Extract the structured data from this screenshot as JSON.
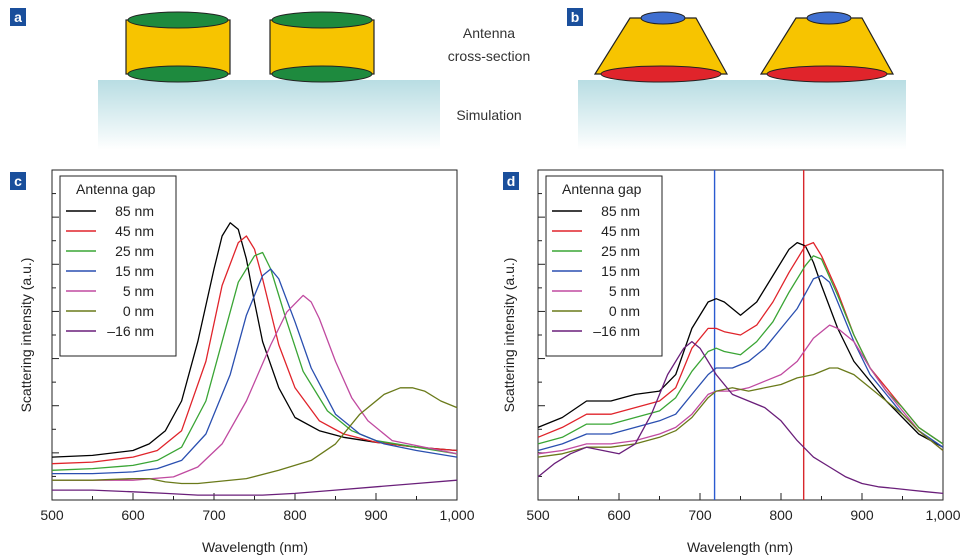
{
  "panels": {
    "a": "a",
    "b": "b",
    "c": "c",
    "d": "d"
  },
  "captions": {
    "antenna_line1": "Antenna",
    "antenna_line2": "cross-section",
    "simulation": "Simulation"
  },
  "colors": {
    "gold": "#f7c400",
    "green_ellipse": "#1e8a3e",
    "blue_ellipse": "#3f6fd0",
    "red_ellipse": "#e0242b",
    "substrate_top": "#b8dde3",
    "panel_label_bg": "#1a4f9c",
    "marker_blue": "#2a5ad0",
    "marker_red": "#d8272c"
  },
  "chart_data": [
    {
      "type": "line",
      "panel": "c",
      "xlabel": "Wavelength (nm)",
      "ylabel": "Scattering intensity (a.u.)",
      "xlim": [
        500,
        1000
      ],
      "ylim": [
        0,
        100
      ],
      "xticks": [
        "500",
        "600",
        "700",
        "800",
        "900",
        "1,000"
      ],
      "legend_title": "Antenna gap",
      "legend_position": "top-left",
      "series": [
        {
          "name": "85 nm",
          "color": "#000000",
          "x": [
            500,
            550,
            600,
            620,
            640,
            660,
            680,
            700,
            710,
            720,
            730,
            740,
            750,
            760,
            780,
            800,
            830,
            860,
            900,
            950,
            1000
          ],
          "y": [
            13,
            13.5,
            15,
            17,
            21,
            30,
            48,
            70,
            80,
            84,
            82,
            73,
            60,
            48,
            34,
            25,
            21,
            19,
            17.5,
            16,
            15
          ]
        },
        {
          "name": "45 nm",
          "color": "#e0242b",
          "x": [
            500,
            550,
            600,
            630,
            660,
            690,
            710,
            730,
            740,
            750,
            760,
            780,
            800,
            830,
            860,
            900,
            950,
            1000
          ],
          "y": [
            11,
            11.5,
            13,
            15,
            21,
            42,
            65,
            78,
            80,
            76,
            67,
            47,
            34,
            24,
            20,
            17.5,
            16,
            15
          ]
        },
        {
          "name": "25 nm",
          "color": "#3aa535",
          "x": [
            500,
            550,
            600,
            630,
            660,
            690,
            710,
            730,
            750,
            760,
            770,
            790,
            810,
            840,
            870,
            900,
            950,
            1000
          ],
          "y": [
            9,
            9.5,
            10.5,
            12,
            16,
            30,
            48,
            66,
            74,
            75,
            70,
            54,
            39,
            27,
            21,
            18,
            16,
            14
          ]
        },
        {
          "name": "15 nm",
          "color": "#2a4fb0",
          "x": [
            500,
            550,
            600,
            630,
            660,
            690,
            720,
            740,
            760,
            770,
            780,
            800,
            820,
            850,
            880,
            910,
            950,
            1000
          ],
          "y": [
            8,
            8,
            8.5,
            9.5,
            12,
            20,
            38,
            56,
            68,
            70,
            67,
            54,
            40,
            26,
            20,
            17,
            15,
            13
          ]
        },
        {
          "name": "5 nm",
          "color": "#c04aa0",
          "x": [
            500,
            550,
            600,
            650,
            680,
            710,
            740,
            770,
            790,
            810,
            820,
            830,
            850,
            870,
            890,
            920,
            960,
            1000
          ],
          "y": [
            6,
            6,
            6,
            7,
            10,
            17,
            30,
            47,
            57,
            62,
            60,
            55,
            42,
            31,
            24,
            18,
            16,
            14
          ]
        },
        {
          "name": "0 nm",
          "color": "#6a7a1a",
          "x": [
            500,
            550,
            600,
            620,
            640,
            660,
            680,
            700,
            740,
            780,
            820,
            850,
            880,
            910,
            930,
            945,
            960,
            980,
            1000
          ],
          "y": [
            6,
            6,
            6.5,
            6.5,
            5.5,
            5,
            5,
            5.5,
            6.5,
            9,
            12,
            17,
            26,
            32,
            34,
            34,
            33,
            30,
            28
          ]
        },
        {
          "name": "–16 nm",
          "color": "#6a1f7a",
          "x": [
            500,
            550,
            600,
            640,
            680,
            720,
            760,
            800,
            850,
            900,
            950,
            1000
          ],
          "y": [
            3,
            3,
            2.5,
            2,
            1.5,
            1.5,
            1.5,
            2,
            3,
            4,
            5,
            6
          ]
        }
      ]
    },
    {
      "type": "line",
      "panel": "d",
      "xlabel": "Wavelength (nm)",
      "ylabel": "Scattering intensity (a.u.)",
      "xlim": [
        500,
        1000
      ],
      "ylim": [
        0,
        100
      ],
      "xticks": [
        "500",
        "600",
        "700",
        "800",
        "900",
        "1,000"
      ],
      "legend_title": "Antenna gap",
      "legend_position": "top-left",
      "vertical_markers": [
        {
          "x": 718,
          "color": "#2a5ad0"
        },
        {
          "x": 828,
          "color": "#d8272c"
        }
      ],
      "series": [
        {
          "name": "85 nm",
          "color": "#000000",
          "x": [
            500,
            530,
            560,
            590,
            620,
            650,
            670,
            690,
            710,
            720,
            730,
            750,
            770,
            790,
            810,
            820,
            830,
            840,
            850,
            870,
            890,
            910,
            930,
            950,
            970,
            1000
          ],
          "y": [
            22,
            25,
            30,
            30,
            32,
            33,
            38,
            52,
            60,
            61,
            60,
            56,
            60,
            68,
            76,
            78,
            77,
            72,
            65,
            52,
            42,
            36,
            30,
            25,
            20,
            16
          ]
        },
        {
          "name": "45 nm",
          "color": "#e0242b",
          "x": [
            500,
            530,
            560,
            590,
            620,
            650,
            670,
            690,
            710,
            720,
            730,
            750,
            770,
            790,
            810,
            830,
            840,
            850,
            870,
            890,
            910,
            930,
            950,
            970,
            1000
          ],
          "y": [
            19,
            22,
            26,
            26,
            28,
            30,
            34,
            46,
            52,
            52,
            51,
            50,
            53,
            60,
            69,
            77,
            78,
            74,
            63,
            50,
            40,
            34,
            28,
            22,
            17
          ]
        },
        {
          "name": "25 nm",
          "color": "#3aa535",
          "x": [
            500,
            530,
            560,
            590,
            620,
            650,
            670,
            690,
            710,
            720,
            730,
            750,
            770,
            790,
            810,
            830,
            840,
            850,
            870,
            890,
            910,
            930,
            950,
            970,
            1000
          ],
          "y": [
            17,
            19,
            23,
            23,
            25,
            27,
            31,
            39,
            45,
            46,
            45,
            44,
            48,
            54,
            63,
            71,
            74,
            73,
            62,
            50,
            40,
            33,
            28,
            22,
            17
          ]
        },
        {
          "name": "15 nm",
          "color": "#2a4fb0",
          "x": [
            500,
            530,
            560,
            590,
            620,
            650,
            670,
            690,
            710,
            720,
            740,
            760,
            780,
            800,
            820,
            840,
            850,
            860,
            870,
            890,
            910,
            930,
            950,
            970,
            1000
          ],
          "y": [
            15,
            17,
            20,
            20,
            22,
            24,
            26,
            32,
            38,
            40,
            40,
            42,
            46,
            52,
            58,
            67,
            68,
            66,
            60,
            48,
            38,
            32,
            26,
            21,
            16
          ]
        },
        {
          "name": "5 nm",
          "color": "#c04aa0",
          "x": [
            500,
            530,
            560,
            590,
            620,
            650,
            670,
            690,
            710,
            720,
            740,
            760,
            780,
            800,
            820,
            840,
            860,
            870,
            890,
            910,
            930,
            950,
            970,
            1000
          ],
          "y": [
            14,
            15,
            17,
            17,
            18,
            20,
            22,
            26,
            32,
            33,
            33,
            34,
            36,
            38,
            42,
            49,
            53,
            52,
            48,
            40,
            33,
            27,
            21,
            15
          ]
        },
        {
          "name": "0 nm",
          "color": "#6a7a1a",
          "x": [
            500,
            530,
            560,
            590,
            620,
            650,
            670,
            690,
            710,
            720,
            740,
            760,
            780,
            800,
            820,
            840,
            860,
            870,
            890,
            910,
            930,
            950,
            970,
            1000
          ],
          "y": [
            13,
            14,
            16,
            16,
            17,
            19,
            21,
            25,
            31,
            33,
            34,
            33,
            34,
            35,
            37,
            38,
            40,
            40,
            38,
            34,
            30,
            26,
            21,
            15
          ]
        },
        {
          "name": "–16 nm",
          "color": "#6a1f7a",
          "x": [
            500,
            520,
            540,
            560,
            580,
            600,
            620,
            640,
            660,
            680,
            690,
            700,
            720,
            740,
            760,
            780,
            800,
            820,
            840,
            860,
            880,
            900,
            920,
            940,
            960,
            980,
            1000
          ],
          "y": [
            7,
            11,
            14,
            16,
            15,
            14,
            17,
            26,
            38,
            46,
            48,
            46,
            38,
            32,
            30,
            28,
            24,
            18,
            13,
            10,
            7,
            5,
            4,
            3.5,
            3,
            2.5,
            2
          ]
        }
      ]
    }
  ]
}
